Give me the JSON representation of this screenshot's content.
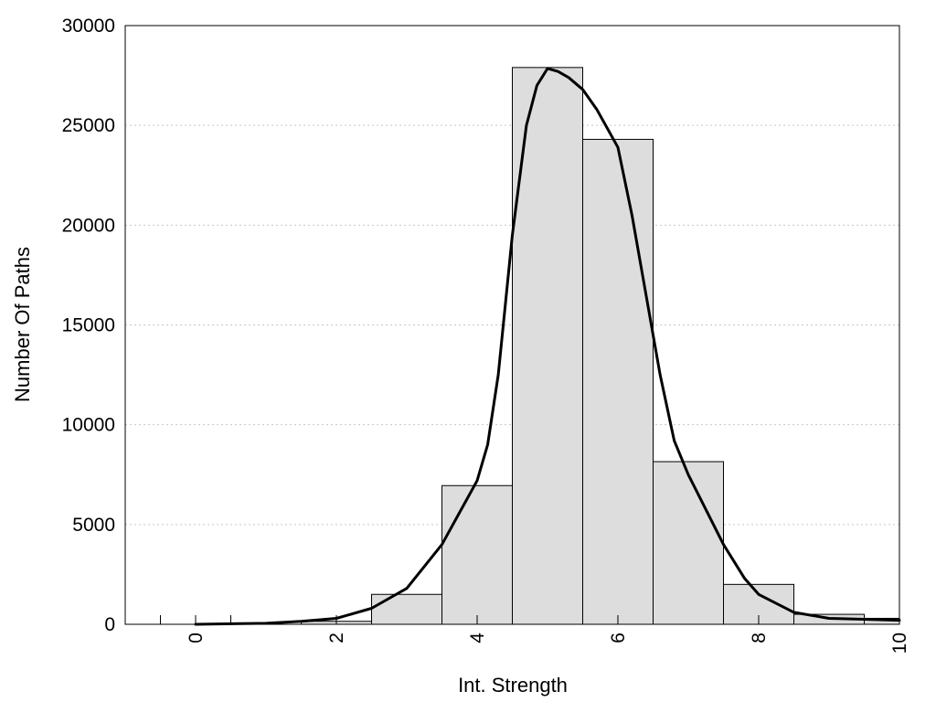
{
  "chart_data": {
    "type": "bar",
    "xlabel": "Int. Strength",
    "ylabel": "Number Of Paths",
    "xlim": [
      -1,
      10
    ],
    "ylim": [
      0,
      30000
    ],
    "grid": "horizontal dotted",
    "bar_color": "#dddddd",
    "x_ticks": [
      "0",
      "2",
      "4",
      "6",
      "8",
      "10"
    ],
    "y_ticks": [
      "0",
      "5000",
      "10000",
      "15000",
      "20000",
      "25000",
      "30000"
    ],
    "bars": [
      {
        "x": 0,
        "value": 0
      },
      {
        "x": 1,
        "value": 0
      },
      {
        "x": 2,
        "value": 150
      },
      {
        "x": 3,
        "value": 1500
      },
      {
        "x": 4,
        "value": 6950
      },
      {
        "x": 5,
        "value": 27900
      },
      {
        "x": 6,
        "value": 24300
      },
      {
        "x": 7,
        "value": 8150
      },
      {
        "x": 8,
        "value": 2000
      },
      {
        "x": 9,
        "value": 500
      },
      {
        "x": 10,
        "value": 300
      }
    ],
    "curve": {
      "x": [
        0,
        1,
        1.5,
        2,
        2.5,
        3,
        3.5,
        4,
        4.15,
        4.3,
        4.5,
        4.7,
        4.85,
        5,
        5.15,
        5.3,
        5.5,
        5.7,
        6,
        6.2,
        6.4,
        6.6,
        6.8,
        7,
        7.2,
        7.5,
        7.8,
        8,
        8.5,
        9,
        9.5,
        10
      ],
      "y": [
        0,
        50,
        150,
        300,
        800,
        1800,
        4000,
        7200,
        9000,
        12500,
        19500,
        25000,
        27000,
        27850,
        27700,
        27400,
        26800,
        25800,
        23900,
        20500,
        16500,
        12500,
        9200,
        7500,
        6100,
        4000,
        2300,
        1500,
        600,
        300,
        250,
        200
      ]
    }
  }
}
